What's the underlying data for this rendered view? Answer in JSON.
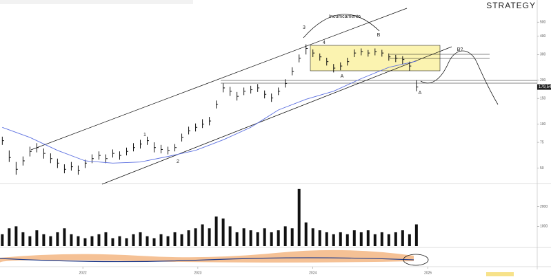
{
  "chart_data": {
    "type": "ohlc",
    "title": "STRATEGY",
    "x": [
      2021.3,
      2021.36,
      2021.42,
      2021.48,
      2021.54,
      2021.6,
      2021.66,
      2021.72,
      2021.78,
      2021.84,
      2021.9,
      2021.96,
      2022.02,
      2022.08,
      2022.14,
      2022.2,
      2022.26,
      2022.32,
      2022.38,
      2022.44,
      2022.5,
      2022.56,
      2022.62,
      2022.68,
      2022.74,
      2022.8,
      2022.86,
      2022.92,
      2022.98,
      2023.04,
      2023.1,
      2023.16,
      2023.22,
      2023.28,
      2023.34,
      2023.4,
      2023.46,
      2023.52,
      2023.58,
      2023.64,
      2023.7,
      2023.76,
      2023.82,
      2023.88,
      2023.94,
      2024.0,
      2024.06,
      2024.12,
      2024.18,
      2024.24,
      2024.3,
      2024.36,
      2024.42,
      2024.48,
      2024.54,
      2024.6,
      2024.66,
      2024.72,
      2024.78,
      2024.84,
      2024.9
    ],
    "high": [
      82,
      66,
      55,
      60,
      70,
      74,
      68,
      63,
      58,
      53,
      55,
      52,
      57,
      62,
      65,
      62,
      67,
      65,
      69,
      74,
      78,
      82,
      75,
      72,
      70,
      73,
      86,
      96,
      101,
      108,
      112,
      145,
      190,
      180,
      166,
      178,
      183,
      188,
      170,
      162,
      178,
      203,
      245,
      300,
      352,
      325,
      305,
      285,
      258,
      265,
      285,
      325,
      330,
      322,
      330,
      323,
      305,
      298,
      292,
      268,
      200
    ],
    "low": [
      72,
      55,
      45,
      52,
      60,
      64,
      58,
      54,
      50,
      46,
      48,
      45,
      50,
      54,
      57,
      54,
      59,
      57,
      61,
      65,
      68,
      72,
      64,
      63,
      62,
      65,
      76,
      85,
      89,
      94,
      98,
      128,
      165,
      156,
      145,
      158,
      162,
      166,
      150,
      142,
      158,
      178,
      216,
      265,
      300,
      288,
      272,
      252,
      226,
      234,
      252,
      288,
      296,
      290,
      296,
      290,
      272,
      266,
      258,
      232,
      168
    ],
    "close": [
      77,
      59,
      49,
      56,
      65,
      69,
      63,
      58,
      54,
      49,
      51,
      48,
      54,
      58,
      61,
      58,
      63,
      61,
      65,
      69,
      73,
      77,
      69,
      67,
      66,
      69,
      81,
      90,
      95,
      100,
      105,
      137,
      177,
      168,
      155,
      168,
      172,
      177,
      160,
      151,
      168,
      190,
      230,
      283,
      330,
      307,
      289,
      268,
      242,
      250,
      268,
      307,
      314,
      307,
      314,
      307,
      289,
      283,
      277,
      250,
      179.54
    ],
    "value_labels": [
      null,
      null,
      null,
      null,
      null,
      null,
      null,
      null,
      null,
      null,
      null,
      null,
      null,
      null,
      null,
      null,
      null,
      null,
      null,
      null,
      null,
      null,
      null,
      null,
      null,
      null,
      null,
      null,
      null,
      null,
      null,
      null,
      null,
      null,
      null,
      null,
      null,
      null,
      null,
      null,
      null,
      null,
      null,
      null,
      null,
      null,
      null,
      null,
      null,
      null,
      null,
      null,
      null,
      null,
      null,
      null,
      null,
      null,
      null,
      null,
      "179,54"
    ],
    "color": "#111111",
    "ma": {
      "color": "#5b6fe0",
      "x": [
        2021.3,
        2021.54,
        2021.78,
        2022.02,
        2022.26,
        2022.5,
        2022.74,
        2022.98,
        2023.22,
        2023.46,
        2023.7,
        2023.94,
        2024.18,
        2024.42,
        2024.66,
        2024.9
      ],
      "values": [
        95,
        81,
        66,
        56,
        54,
        55,
        60,
        66,
        78,
        95,
        125,
        148,
        168,
        205,
        245,
        270
      ]
    },
    "volume": {
      "color": "#111111",
      "ylim": [
        0,
        3000
      ],
      "values": [
        600,
        900,
        1000,
        700,
        500,
        800,
        600,
        500,
        700,
        900,
        600,
        500,
        400,
        500,
        600,
        700,
        400,
        500,
        400,
        600,
        700,
        500,
        400,
        600,
        500,
        700,
        600,
        800,
        900,
        1100,
        900,
        1500,
        1400,
        1000,
        700,
        900,
        800,
        700,
        900,
        700,
        800,
        1000,
        900,
        2900,
        1200,
        900,
        800,
        700,
        600,
        700,
        600,
        800,
        700,
        800,
        600,
        700,
        600,
        700,
        800,
        600,
        1100
      ],
      "yticks": [
        1000,
        2000
      ]
    },
    "log_y": true,
    "ylim": [
      40,
      650
    ],
    "yticks": [
      50,
      75,
      100,
      150,
      200,
      300,
      400,
      500
    ],
    "xlim": [
      2021.28,
      2025.95
    ],
    "xticks": [
      {
        "value": 2022,
        "label": "2022"
      },
      {
        "value": 2023,
        "label": "2023"
      },
      {
        "value": 2024,
        "label": "2024"
      },
      {
        "value": 2025,
        "label": "2025"
      }
    ],
    "annotations": [
      "Incumcamento",
      "1",
      "2",
      "3",
      "4",
      "A",
      "B",
      "B?",
      "A"
    ]
  }
}
